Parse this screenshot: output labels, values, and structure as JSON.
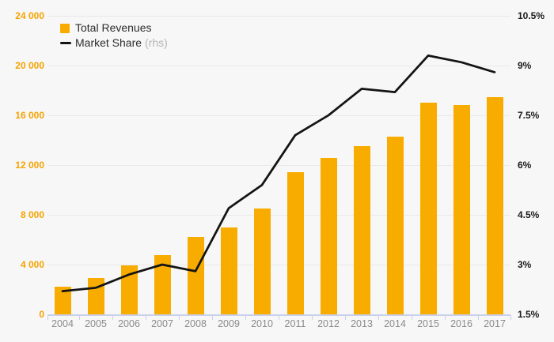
{
  "chart_data": {
    "type": "combo-bar-line",
    "categories": [
      "2004",
      "2005",
      "2006",
      "2007",
      "2008",
      "2009",
      "2010",
      "2011",
      "2012",
      "2013",
      "2014",
      "2015",
      "2016",
      "2017"
    ],
    "series": [
      {
        "name": "Total Revenues",
        "type": "bar",
        "axis": "left",
        "values": [
          2250,
          2900,
          3950,
          4750,
          6250,
          7000,
          8500,
          11400,
          12600,
          13500,
          14300,
          17000,
          16800,
          17450
        ]
      },
      {
        "name": "Market Share",
        "suffix": "(rhs)",
        "type": "line",
        "axis": "right",
        "values": [
          2.2,
          2.3,
          2.7,
          3.0,
          2.8,
          4.7,
          5.4,
          6.9,
          7.5,
          8.3,
          8.2,
          9.3,
          9.1,
          8.8
        ]
      }
    ],
    "left_axis": {
      "min": 0,
      "max": 24000,
      "tick_labels": [
        "24 000",
        "20 000",
        "16 000",
        "12 000",
        "8 000",
        "4 000",
        "0"
      ]
    },
    "right_axis": {
      "min": 1.5,
      "max": 10.5,
      "tick_labels": [
        "10.5%",
        "9%",
        "7.5%",
        "6%",
        "4.5%",
        "3%",
        "1.5%"
      ]
    },
    "grid": "horizontal",
    "legend_position": "top-left"
  },
  "legend": {
    "items": [
      {
        "label": "Total Revenues",
        "suffix": ""
      },
      {
        "label": "Market Share",
        "suffix": "(rhs)"
      }
    ]
  },
  "colors": {
    "background": "#F7F7F7",
    "bar": "#F9AC00",
    "line": "#141414",
    "gridline": "#E9E9E9",
    "axis_line": "#C9D0EA",
    "left_axis_label": "#F5A300",
    "right_axis_label": "#1A1A1A",
    "x_axis_label": "#8A8A8A",
    "legend_text": "#2D2D2D",
    "legend_suffix": "#B5B5B5"
  }
}
